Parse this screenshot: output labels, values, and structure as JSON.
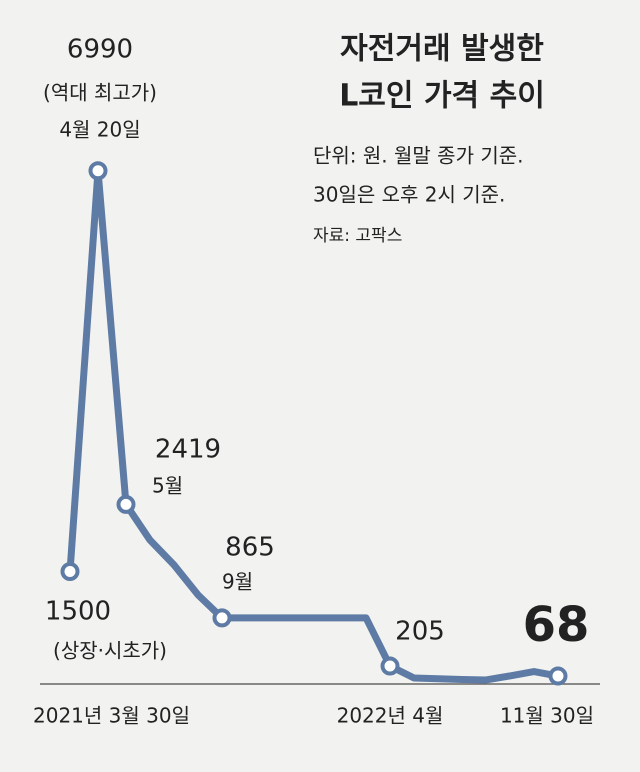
{
  "chart_data": {
    "type": "line",
    "title_lines": [
      "자전거래 발생한",
      "L코인 가격 추이"
    ],
    "notes": [
      "단위: 원. 월말 종가 기준.",
      "30일은 오후 2시 기준.",
      "자료: 고팍스"
    ],
    "categories": [
      "2021년 3월 30일",
      null,
      null,
      null,
      null,
      null,
      null,
      null,
      null,
      null,
      null,
      null,
      null,
      "2022년 4월",
      null,
      null,
      null,
      null,
      null,
      null,
      "11월 30일"
    ],
    "series": [
      {
        "name": "L코인",
        "color": "#5d7ba4",
        "values": [
          1500,
          6990,
          2419,
          1930,
          1590,
          1180,
          865,
          865,
          865,
          865,
          865,
          865,
          865,
          205,
          41,
          30,
          20,
          14,
          70,
          130,
          68
        ],
        "value_labels": [
          "1500",
          "6990",
          "2419",
          null,
          null,
          null,
          "865",
          null,
          null,
          null,
          null,
          null,
          null,
          "205",
          null,
          null,
          null,
          null,
          null,
          null,
          "68"
        ],
        "point_notes": [
          [
            "(상장·시초가)"
          ],
          [
            "(역대 최고가)",
            "4월 20일"
          ],
          [
            "5월"
          ],
          null,
          null,
          null,
          [
            "9월"
          ],
          null,
          null,
          null,
          null,
          null,
          null,
          null,
          null,
          null,
          null,
          null,
          null,
          null,
          null
        ]
      }
    ],
    "ylim": [
      0,
      7000
    ]
  }
}
